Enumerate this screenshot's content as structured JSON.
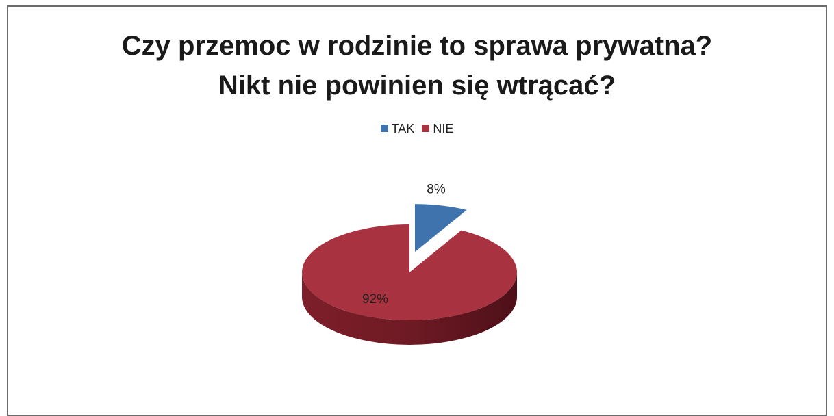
{
  "chart_data": {
    "type": "pie",
    "title_lines": [
      "Czy przemoc w rodzinie to sprawa prywatna?",
      "Nikt nie powinien się wtrącać?"
    ],
    "categories": [
      "TAK",
      "NIE"
    ],
    "values": [
      8,
      92
    ],
    "value_labels": [
      "8%",
      "92%"
    ],
    "colors": [
      "#3f73ad",
      "#a8323f"
    ],
    "legend_position": "top",
    "exploded_slice": "TAK",
    "style": "3d"
  }
}
